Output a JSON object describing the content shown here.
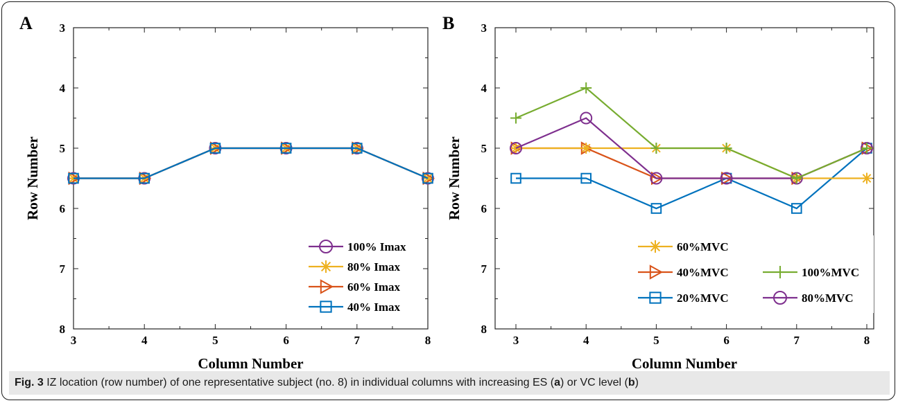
{
  "chart_data": [
    {
      "panel": "A",
      "type": "line",
      "xlabel": "Column Number",
      "ylabel": "Row Number",
      "x": [
        3,
        4,
        5,
        6,
        7,
        8
      ],
      "xlim": [
        3,
        8
      ],
      "ylim": [
        3,
        8
      ],
      "y_reversed": true,
      "x_ticks": [
        "3",
        "4",
        "5",
        "6",
        "7",
        "8"
      ],
      "y_ticks": [
        "3",
        "4",
        "5",
        "6",
        "7",
        "8"
      ],
      "grid": false,
      "legend_position": "bottom-right",
      "series": [
        {
          "name": "100% Imax",
          "marker": "circle",
          "color": "#7e2f8e",
          "values": [
            5.5,
            5.5,
            5,
            5,
            5,
            5.5
          ]
        },
        {
          "name": "80% Imax",
          "marker": "star",
          "color": "#edb120",
          "values": [
            5.5,
            5.5,
            5,
            5,
            5,
            5.5
          ]
        },
        {
          "name": "60% Imax",
          "marker": "triangle-right",
          "color": "#d95319",
          "values": [
            5.5,
            5.5,
            5,
            5,
            5,
            5.5
          ]
        },
        {
          "name": "40% Imax",
          "marker": "square",
          "color": "#0072bd",
          "values": [
            5.5,
            5.5,
            5,
            5,
            5,
            5.5
          ]
        }
      ]
    },
    {
      "panel": "B",
      "type": "line",
      "xlabel": "Column Number",
      "ylabel": "Row Number",
      "x": [
        3,
        4,
        5,
        6,
        7,
        8
      ],
      "xlim": [
        3,
        8
      ],
      "ylim": [
        3,
        8
      ],
      "y_reversed": true,
      "x_ticks": [
        "3",
        "4",
        "5",
        "6",
        "7",
        "8"
      ],
      "y_ticks": [
        "3",
        "4",
        "5",
        "6",
        "7",
        "8"
      ],
      "grid": false,
      "legend_position": "bottom-left",
      "series": [
        {
          "name": "20%MVC",
          "marker": "square",
          "color": "#0072bd",
          "values": [
            5.5,
            5.5,
            6,
            5.5,
            6,
            5
          ]
        },
        {
          "name": "40%MVC",
          "marker": "triangle-right",
          "color": "#d95319",
          "values": [
            5,
            5,
            5.5,
            5.5,
            5.5,
            5
          ]
        },
        {
          "name": "60%MVC",
          "marker": "star",
          "color": "#edb120",
          "values": [
            5,
            5,
            5,
            5,
            5.5,
            5.5
          ]
        },
        {
          "name": "80%MVC",
          "marker": "circle",
          "color": "#7e2f8e",
          "values": [
            5,
            4.5,
            5.5,
            5.5,
            5.5,
            5
          ]
        },
        {
          "name": "100%MVC",
          "marker": "plus",
          "color": "#77ac30",
          "values": [
            4.5,
            4,
            5,
            5,
            5.5,
            5
          ]
        }
      ]
    }
  ],
  "caption": {
    "fig_label": "Fig. 3",
    "part1": " IZ location (row number) of one representative subject (no. 8) in individual columns with increasing ES (",
    "a": "a",
    "part2": ") or VC level (",
    "b": "b",
    "part3": ")"
  }
}
